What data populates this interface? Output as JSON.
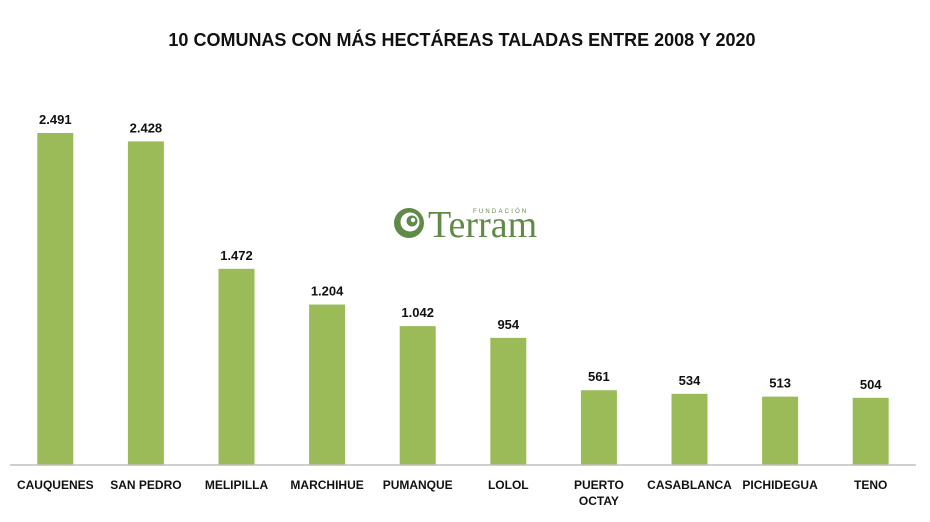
{
  "chart_data": {
    "type": "bar",
    "title": "10 COMUNAS CON MÁS HECTÁREAS TALADAS ENTRE 2008 Y 2020",
    "categories": [
      "CAUQUENES",
      "SAN PEDRO",
      "MELIPILLA",
      "MARCHIHUE",
      "PUMANQUE",
      "LOLOL",
      "PUERTO OCTAY",
      "CASABLANCA",
      "PICHIDEGUA",
      "TENO"
    ],
    "values": [
      2491,
      2428,
      1472,
      1204,
      1042,
      954,
      561,
      534,
      513,
      504
    ],
    "value_labels": [
      "2.491",
      "2.428",
      "1.472",
      "1.204",
      "1.042",
      "954",
      "561",
      "534",
      "513",
      "504"
    ],
    "xlabel": "",
    "ylabel": "",
    "ylim": [
      0,
      2500
    ],
    "grid": false,
    "bar_color": "#9bbb59",
    "axis_color": "#bfbfbf"
  },
  "watermark": {
    "small_text": "FUNDACIÓN",
    "big_text": "Terram",
    "icon": "spiral-logo-icon",
    "color": "#5f8a47"
  }
}
